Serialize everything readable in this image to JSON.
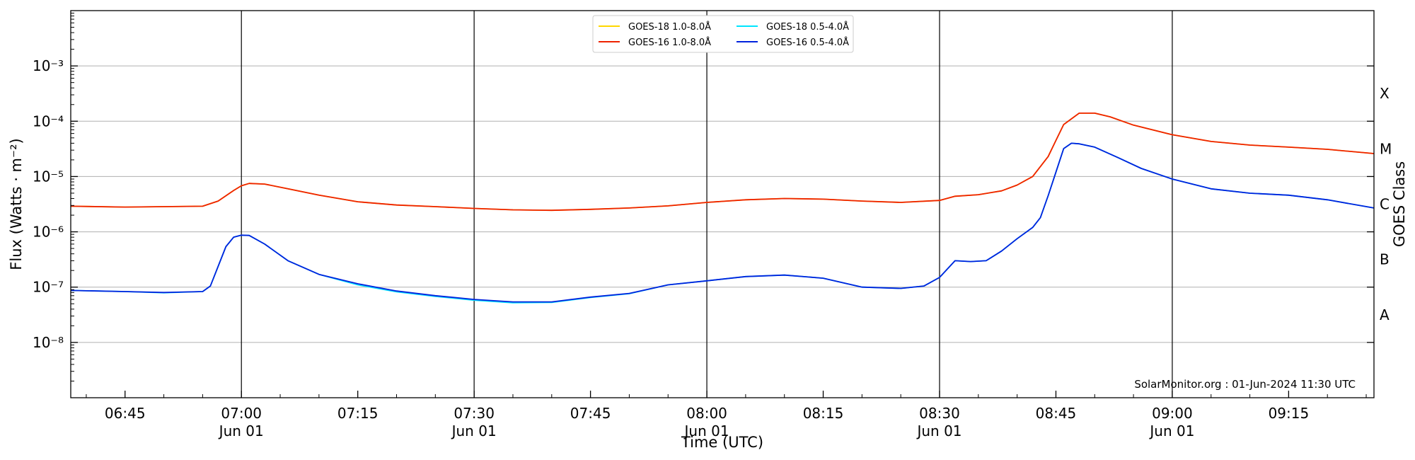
{
  "chart_data": {
    "type": "line",
    "title": "",
    "xlabel": "Time (UTC)",
    "ylabel": "Flux (Watts · m⁻²)",
    "y2label": "GOES Class",
    "yscale": "log",
    "xlim": [
      "06:38",
      "09:26"
    ],
    "ylim": [
      1e-09,
      0.01
    ],
    "y_ticks": [
      {
        "value": 1e-08,
        "label": "10⁻⁸"
      },
      {
        "value": 1e-07,
        "label": "10⁻⁷"
      },
      {
        "value": 1e-06,
        "label": "10⁻⁶"
      },
      {
        "value": 1e-05,
        "label": "10⁻⁵"
      },
      {
        "value": 0.0001,
        "label": "10⁻⁴"
      },
      {
        "value": 0.001,
        "label": "10⁻³"
      }
    ],
    "x_ticks": [
      {
        "time": "06:45",
        "label": "06:45",
        "sublabel": ""
      },
      {
        "time": "07:00",
        "label": "07:00",
        "sublabel": "Jun 01"
      },
      {
        "time": "07:15",
        "label": "07:15",
        "sublabel": ""
      },
      {
        "time": "07:30",
        "label": "07:30",
        "sublabel": "Jun 01"
      },
      {
        "time": "07:45",
        "label": "07:45",
        "sublabel": ""
      },
      {
        "time": "08:00",
        "label": "08:00",
        "sublabel": "Jun 01"
      },
      {
        "time": "08:15",
        "label": "08:15",
        "sublabel": ""
      },
      {
        "time": "08:30",
        "label": "08:30",
        "sublabel": "Jun 01"
      },
      {
        "time": "08:45",
        "label": "08:45",
        "sublabel": ""
      },
      {
        "time": "09:00",
        "label": "09:00",
        "sublabel": "Jun 01"
      },
      {
        "time": "09:15",
        "label": "09:15",
        "sublabel": ""
      }
    ],
    "vertical_lines": [
      "07:00",
      "07:30",
      "08:00",
      "08:30",
      "09:00"
    ],
    "grid": "horizontal",
    "goes_classes": [
      {
        "label": "A",
        "value": 3.16e-08
      },
      {
        "label": "B",
        "value": 3.16e-07
      },
      {
        "label": "C",
        "value": 3.16e-06
      },
      {
        "label": "M",
        "value": 3.16e-05
      },
      {
        "label": "X",
        "value": 0.000316
      }
    ],
    "legend_placement": "top-center",
    "credit": "SolarMonitor.org : 01-Jun-2024 11:30 UTC",
    "series": [
      {
        "name": "GOES-18 1.0-8.0Å",
        "color": "#ffd700",
        "x": [
          "06:38",
          "06:45",
          "06:50",
          "06:55",
          "06:57",
          "06:59",
          "07:00",
          "07:01",
          "07:03",
          "07:06",
          "07:10",
          "07:15",
          "07:20",
          "07:25",
          "07:30",
          "07:35",
          "07:40",
          "07:45",
          "07:50",
          "07:55",
          "08:00",
          "08:05",
          "08:10",
          "08:15",
          "08:20",
          "08:25",
          "08:30",
          "08:32",
          "08:35",
          "08:38",
          "08:40",
          "08:42",
          "08:44",
          "08:45",
          "08:46",
          "08:48",
          "08:50",
          "08:52",
          "08:55",
          "09:00",
          "09:05",
          "09:10",
          "09:15",
          "09:20",
          "09:26"
        ],
        "y": [
          2.9e-06,
          2.8e-06,
          2.85e-06,
          2.9e-06,
          3.6e-06,
          5.6e-06,
          6.8e-06,
          7.5e-06,
          7.3e-06,
          6e-06,
          4.6e-06,
          3.5e-06,
          3.05e-06,
          2.85e-06,
          2.65e-06,
          2.5e-06,
          2.45e-06,
          2.55e-06,
          2.7e-06,
          2.95e-06,
          3.4e-06,
          3.8e-06,
          4e-06,
          3.9e-06,
          3.6e-06,
          3.4e-06,
          3.7e-06,
          4.4e-06,
          4.7e-06,
          5.5e-06,
          7e-06,
          1e-05,
          2.3e-05,
          4.5e-05,
          8.7e-05,
          0.00014,
          0.00014,
          0.00012,
          8.5e-05,
          5.7e-05,
          4.3e-05,
          3.7e-05,
          3.4e-05,
          3.1e-05,
          2.6e-05
        ]
      },
      {
        "name": "GOES-16 1.0-8.0Å",
        "color": "#ee2200",
        "x": [
          "06:38",
          "06:45",
          "06:50",
          "06:55",
          "06:57",
          "06:59",
          "07:00",
          "07:01",
          "07:03",
          "07:06",
          "07:10",
          "07:15",
          "07:20",
          "07:25",
          "07:30",
          "07:35",
          "07:40",
          "07:45",
          "07:50",
          "07:55",
          "08:00",
          "08:05",
          "08:10",
          "08:15",
          "08:20",
          "08:25",
          "08:30",
          "08:32",
          "08:35",
          "08:38",
          "08:40",
          "08:42",
          "08:44",
          "08:45",
          "08:46",
          "08:48",
          "08:50",
          "08:52",
          "08:55",
          "09:00",
          "09:05",
          "09:10",
          "09:15",
          "09:20",
          "09:26"
        ],
        "y": [
          2.9e-06,
          2.8e-06,
          2.85e-06,
          2.9e-06,
          3.6e-06,
          5.6e-06,
          6.8e-06,
          7.5e-06,
          7.3e-06,
          6e-06,
          4.6e-06,
          3.5e-06,
          3.05e-06,
          2.85e-06,
          2.65e-06,
          2.5e-06,
          2.45e-06,
          2.55e-06,
          2.7e-06,
          2.95e-06,
          3.4e-06,
          3.8e-06,
          4e-06,
          3.9e-06,
          3.6e-06,
          3.4e-06,
          3.7e-06,
          4.4e-06,
          4.7e-06,
          5.5e-06,
          7e-06,
          1e-05,
          2.3e-05,
          4.5e-05,
          8.7e-05,
          0.00014,
          0.00014,
          0.00012,
          8.5e-05,
          5.7e-05,
          4.3e-05,
          3.7e-05,
          3.4e-05,
          3.1e-05,
          2.6e-05
        ]
      },
      {
        "name": "GOES-18 0.5-4.0Å",
        "color": "#00e5ff",
        "x": [
          "06:38",
          "06:45",
          "06:50",
          "06:55",
          "06:56",
          "06:58",
          "06:59",
          "07:00",
          "07:01",
          "07:03",
          "07:06",
          "07:10",
          "07:15",
          "07:20",
          "07:25",
          "07:30",
          "07:35",
          "07:40",
          "07:45",
          "07:50",
          "07:55",
          "08:00",
          "08:05",
          "08:10",
          "08:15",
          "08:20",
          "08:25",
          "08:28",
          "08:30",
          "08:32",
          "08:34",
          "08:36",
          "08:38",
          "08:40",
          "08:42",
          "08:43",
          "08:44",
          "08:45",
          "08:46",
          "08:47",
          "08:48",
          "08:50",
          "08:53",
          "08:56",
          "09:00",
          "09:05",
          "09:10",
          "09:15",
          "09:20",
          "09:26"
        ],
        "y": [
          8.7e-08,
          8.3e-08,
          7.9e-08,
          8.3e-08,
          1.05e-07,
          5.4e-07,
          8e-07,
          8.7e-07,
          8.6e-07,
          6e-07,
          3e-07,
          1.7e-07,
          1.1e-07,
          8.2e-08,
          6.8e-08,
          5.8e-08,
          5.2e-08,
          5.3e-08,
          6.5e-08,
          7.6e-08,
          1.1e-07,
          1.3e-07,
          1.55e-07,
          1.65e-07,
          1.45e-07,
          1e-07,
          9.5e-08,
          1.05e-07,
          1.5e-07,
          3e-07,
          2.9e-07,
          3e-07,
          4.5e-07,
          7.5e-07,
          1.2e-06,
          1.8e-06,
          4.5e-06,
          1.2e-05,
          3.2e-05,
          4e-05,
          3.9e-05,
          3.4e-05,
          2.2e-05,
          1.4e-05,
          9e-06,
          6e-06,
          5e-06,
          4.6e-06,
          3.8e-06,
          2.7e-06
        ]
      },
      {
        "name": "GOES-16 0.5-4.0Å",
        "color": "#0022dd",
        "x": [
          "06:38",
          "06:45",
          "06:50",
          "06:55",
          "06:56",
          "06:58",
          "06:59",
          "07:00",
          "07:01",
          "07:03",
          "07:06",
          "07:10",
          "07:15",
          "07:20",
          "07:25",
          "07:30",
          "07:35",
          "07:40",
          "07:45",
          "07:50",
          "07:55",
          "08:00",
          "08:05",
          "08:10",
          "08:15",
          "08:20",
          "08:25",
          "08:28",
          "08:30",
          "08:32",
          "08:34",
          "08:36",
          "08:38",
          "08:40",
          "08:42",
          "08:43",
          "08:44",
          "08:45",
          "08:46",
          "08:47",
          "08:48",
          "08:50",
          "08:53",
          "08:56",
          "09:00",
          "09:05",
          "09:10",
          "09:15",
          "09:20",
          "09:26"
        ],
        "y": [
          8.7e-08,
          8.3e-08,
          8e-08,
          8.3e-08,
          1.05e-07,
          5.4e-07,
          8e-07,
          8.7e-07,
          8.6e-07,
          6e-07,
          3e-07,
          1.7e-07,
          1.15e-07,
          8.5e-08,
          7e-08,
          6e-08,
          5.4e-08,
          5.4e-08,
          6.6e-08,
          7.7e-08,
          1.1e-07,
          1.3e-07,
          1.55e-07,
          1.65e-07,
          1.45e-07,
          1e-07,
          9.5e-08,
          1.05e-07,
          1.5e-07,
          3e-07,
          2.9e-07,
          3e-07,
          4.5e-07,
          7.5e-07,
          1.2e-06,
          1.8e-06,
          4.5e-06,
          1.2e-05,
          3.2e-05,
          4e-05,
          3.9e-05,
          3.4e-05,
          2.2e-05,
          1.4e-05,
          9e-06,
          6e-06,
          5e-06,
          4.6e-06,
          3.8e-06,
          2.7e-06
        ]
      }
    ]
  }
}
